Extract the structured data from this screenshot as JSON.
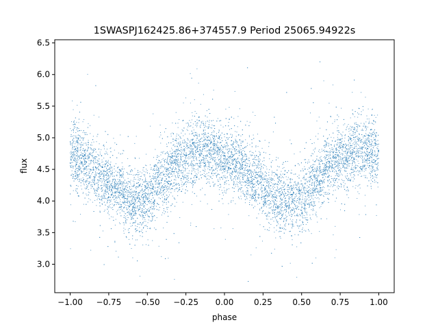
{
  "chart_data": {
    "type": "scatter",
    "title": "1SWASPJ162425.86+374557.9 Period 25065.94922s",
    "xlabel": "phase",
    "ylabel": "flux",
    "xlim": [
      -1.1,
      1.1
    ],
    "ylim": [
      2.55,
      6.55
    ],
    "xticks": [
      -1.0,
      -0.75,
      -0.5,
      -0.25,
      0.0,
      0.25,
      0.5,
      0.75,
      1.0
    ],
    "xtick_labels": [
      "−1.00",
      "−0.75",
      "−0.50",
      "−0.25",
      "0.00",
      "0.25",
      "0.50",
      "0.75",
      "1.00"
    ],
    "yticks": [
      3.0,
      3.5,
      4.0,
      4.5,
      5.0,
      5.5,
      6.0,
      6.5
    ],
    "ytick_labels": [
      "3.0",
      "3.5",
      "4.0",
      "4.5",
      "5.0",
      "5.5",
      "6.0",
      "6.5"
    ],
    "grid": false,
    "series": [
      {
        "color": "#1f77b4",
        "x_range": [
          -1.0,
          1.0
        ],
        "trend": {
          "x": [
            -1.0,
            -0.9,
            -0.8,
            -0.7,
            -0.6,
            -0.55,
            -0.5,
            -0.4,
            -0.3,
            -0.2,
            -0.1,
            0.0,
            0.1,
            0.2,
            0.3,
            0.4,
            0.45,
            0.5,
            0.6,
            0.7,
            0.8,
            0.9,
            1.0
          ],
          "y": [
            4.75,
            4.6,
            4.4,
            4.18,
            4.03,
            4.0,
            4.05,
            4.35,
            4.6,
            4.75,
            4.78,
            4.68,
            4.55,
            4.35,
            4.12,
            4.0,
            3.98,
            4.03,
            4.35,
            4.6,
            4.75,
            4.8,
            4.75
          ]
        },
        "scatter_spread": 0.3,
        "point_count": 9000
      }
    ]
  }
}
